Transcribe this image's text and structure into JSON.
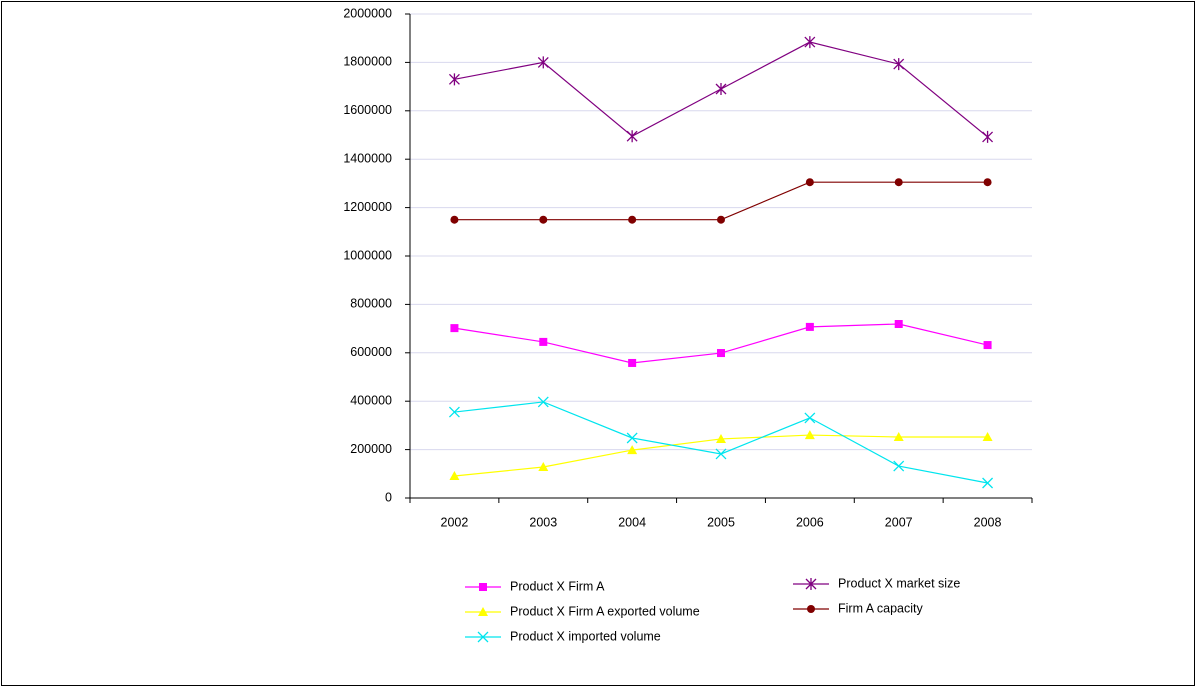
{
  "chart_data": {
    "type": "line",
    "categories": [
      "2002",
      "2003",
      "2004",
      "2005",
      "2006",
      "2007",
      "2008"
    ],
    "series": [
      {
        "name": "Product X Firm A",
        "color": "#ff00ff",
        "marker": "square",
        "values": [
          702000,
          645000,
          558000,
          599000,
          707000,
          719000,
          632000
        ]
      },
      {
        "name": "Product X Firm A exported volume",
        "color": "#ffff00",
        "marker": "triangle",
        "values": [
          91000,
          128000,
          198000,
          244000,
          260000,
          252000,
          252000
        ]
      },
      {
        "name": "Product X imported volume",
        "color": "#00e5ee",
        "marker": "x",
        "values": [
          355000,
          397000,
          248000,
          182000,
          331000,
          132000,
          62000
        ]
      },
      {
        "name": "Product X market size",
        "color": "#800080",
        "marker": "star",
        "values": [
          1730000,
          1800000,
          1495000,
          1690000,
          1884000,
          1793000,
          1492000
        ]
      },
      {
        "name": "Firm A capacity",
        "color": "#800000",
        "marker": "circle",
        "values": [
          1150000,
          1150000,
          1150000,
          1150000,
          1305000,
          1305000,
          1305000
        ]
      }
    ],
    "ylim": [
      0,
      2000000
    ],
    "yticks": [
      0,
      200000,
      400000,
      600000,
      800000,
      1000000,
      1200000,
      1400000,
      1600000,
      1800000,
      2000000
    ],
    "grid": true,
    "legend": "bottom"
  }
}
